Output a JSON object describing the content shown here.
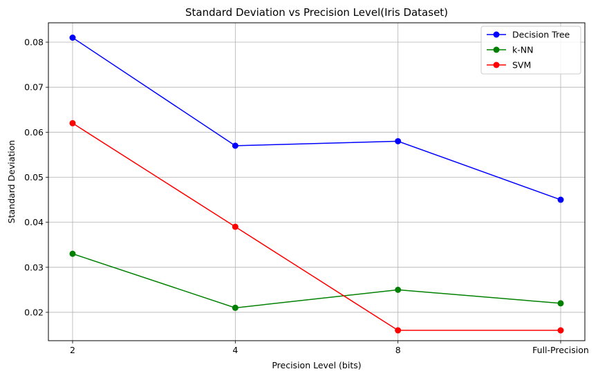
{
  "chart_data": {
    "type": "line",
    "title": "Standard Deviation vs Precision Level(Iris Dataset)",
    "xlabel": "Precision Level (bits)",
    "ylabel": "Standard Deviation",
    "categories": [
      "2",
      "4",
      "8",
      "Full-Precision"
    ],
    "ylim": [
      0.0137,
      0.0843
    ],
    "yticks": [
      "0.02",
      "0.03",
      "0.04",
      "0.05",
      "0.06",
      "0.07",
      "0.08"
    ],
    "grid": true,
    "legend_position": "top-right",
    "series": [
      {
        "name": "Decision Tree",
        "color": "#0000ff",
        "values": [
          0.081,
          0.057,
          0.058,
          0.045
        ]
      },
      {
        "name": "k-NN",
        "color": "#008000",
        "values": [
          0.033,
          0.021,
          0.025,
          0.022
        ]
      },
      {
        "name": "SVM",
        "color": "#ff0000",
        "values": [
          0.062,
          0.039,
          0.016,
          0.016
        ]
      }
    ]
  }
}
